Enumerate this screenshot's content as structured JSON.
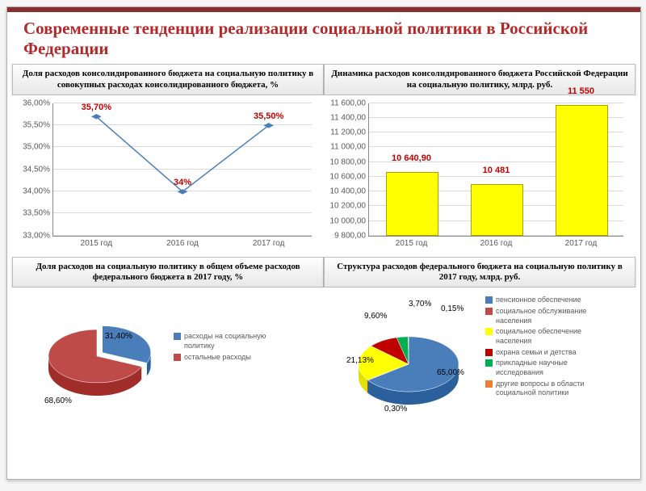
{
  "title": "Современные тенденции реализации социальной политики в Российской Федерации",
  "subtitles": {
    "line": "Доля расходов консолидированного бюджета на социальную политику в совокупных расходах консолидированного бюджета, %",
    "bar": "Динамика расходов консолидированного бюджета Российской Федерации на социальную политику, млрд. руб.",
    "pie1": "Доля расходов на социальную политику в общем объеме расходов федерального бюджета в 2017 году, %",
    "pie2": "Структура расходов федерального бюджета на социальную политику в 2017 году, млрд. руб."
  },
  "line_chart": {
    "type": "line",
    "x_labels": [
      "2015 год",
      "2016 год",
      "2017 год"
    ],
    "values": [
      35.7,
      34.0,
      35.5
    ],
    "data_labels": [
      "35,70%",
      "34%",
      "35,50%"
    ],
    "y_min": 33.0,
    "y_max": 36.0,
    "y_step": 0.5,
    "y_tick_labels": [
      "33,00%",
      "33,50%",
      "34,00%",
      "34,50%",
      "35,00%",
      "35,50%",
      "36,00%"
    ],
    "line_color": "#4a7ebb",
    "marker_color": "#4a7ebb",
    "label_color": "#c00000",
    "grid_color": "#d9d9d9"
  },
  "bar_chart": {
    "type": "bar",
    "x_labels": [
      "2015 год",
      "2016 год",
      "2017 год"
    ],
    "values": [
      10640.9,
      10481,
      11550
    ],
    "data_labels": [
      "10 640,90",
      "10 481",
      "11 550"
    ],
    "y_min": 9800,
    "y_max": 11600,
    "y_step": 200,
    "y_tick_labels": [
      "9 800,00",
      "10 000,00",
      "10 200,00",
      "10 400,00",
      "10 600,00",
      "10 800,00",
      "11 000,00",
      "11 200,00",
      "11 400,00",
      "11 600,00"
    ],
    "bar_color": "#ffff00",
    "bar_border": "#aba000",
    "label_color": "#c00000",
    "grid_color": "#d9d9d9"
  },
  "pie1": {
    "type": "pie",
    "slices": [
      {
        "label": "расходы на социальную политику",
        "value": 31.4,
        "text": "31,40%",
        "color": "#4a7ebb"
      },
      {
        "label": "остальные расходы",
        "value": 68.6,
        "text": "68,60%",
        "color": "#be4b48"
      }
    ]
  },
  "pie2": {
    "type": "pie",
    "slices": [
      {
        "label": "пенсионное обеспечение",
        "value": 65.0,
        "text": "65,00%",
        "color": "#4a7ebb"
      },
      {
        "label": "социальное обслуживание населения",
        "value": 0.3,
        "text": "0,30%",
        "color": "#be4b48"
      },
      {
        "label": "социальное обеспечение населения",
        "value": 21.13,
        "text": "21,13%",
        "color": "#ffff00"
      },
      {
        "label": "охрана семьи и детства",
        "value": 9.6,
        "text": "9,60%",
        "color": "#c00000"
      },
      {
        "label": "прикладные научные исследования",
        "value": 3.7,
        "text": "3,70%",
        "color": "#00b050"
      },
      {
        "label": "другие вопросы в области социальной политики",
        "value": 0.15,
        "text": "0,15%",
        "color": "#ed7d31"
      }
    ]
  }
}
